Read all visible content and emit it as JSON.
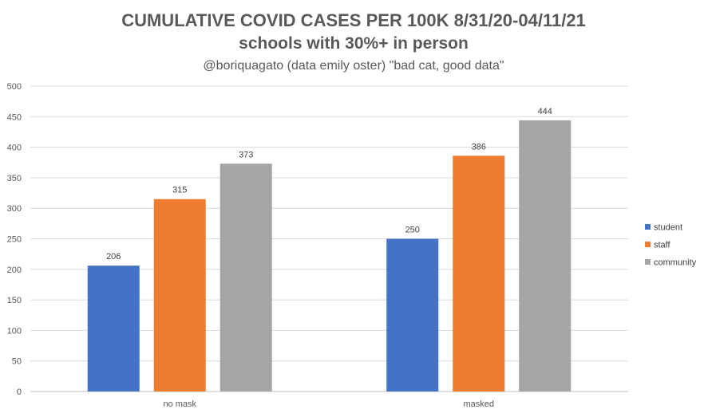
{
  "chart_data": {
    "type": "bar",
    "title": "CUMULATIVE COVID CASES PER 100K 8/31/20-04/11/21",
    "subtitle": "schools with 30%+ in person",
    "caption": "@boriquagato (data emily oster) \"bad cat, good data\"",
    "categories": [
      "no mask",
      "masked"
    ],
    "series": [
      {
        "name": "student",
        "color": "#4472c4",
        "values": [
          206,
          250
        ]
      },
      {
        "name": "staff",
        "color": "#ed7d31",
        "values": [
          315,
          386
        ]
      },
      {
        "name": "community",
        "color": "#a5a5a5",
        "values": [
          373,
          444
        ]
      }
    ],
    "ylim": [
      0,
      500
    ],
    "yticks": [
      0,
      50,
      100,
      150,
      200,
      250,
      300,
      350,
      400,
      450,
      500
    ],
    "grid": true,
    "legend": "right",
    "data_labels": true,
    "xlabel": "",
    "ylabel": ""
  }
}
